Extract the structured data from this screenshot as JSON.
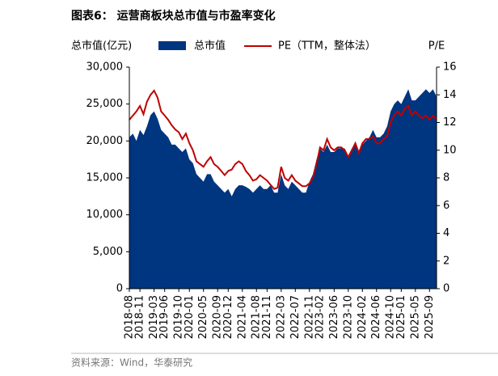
{
  "chart_data": {
    "type": "area_line",
    "title": "图表6：  运营商板块总市值与市盈率变化",
    "ylabel": "总市值(亿元)",
    "y2label": "P/E",
    "source": "资料来源：Wind，华泰研究",
    "x": [
      "2018-08",
      "2018-09",
      "2018-10",
      "2018-11",
      "2018-12",
      "2019-01",
      "2019-02",
      "2019-03",
      "2019-04",
      "2019-05",
      "2019-06",
      "2019-07",
      "2019-08",
      "2019-09",
      "2019-10",
      "2019-11",
      "2019-12",
      "2020-01",
      "2020-02",
      "2020-03",
      "2020-04",
      "2020-05",
      "2020-06",
      "2020-07",
      "2020-08",
      "2020-09",
      "2020-10",
      "2020-11",
      "2020-12",
      "2021-01",
      "2021-02",
      "2021-03",
      "2021-04",
      "2021-05",
      "2021-06",
      "2021-07",
      "2021-08",
      "2021-09",
      "2021-10",
      "2021-11",
      "2021-12",
      "2022-01",
      "2022-02",
      "2022-03",
      "2022-04",
      "2022-05",
      "2022-06",
      "2022-07",
      "2022-08",
      "2022-09",
      "2022-10",
      "2022-11",
      "2022-12",
      "2023-01",
      "2023-02",
      "2023-03",
      "2023-04",
      "2023-05",
      "2023-06",
      "2023-07",
      "2023-08",
      "2023-09",
      "2023-10",
      "2023-11",
      "2023-12",
      "2024-01",
      "2024-02",
      "2024-03",
      "2024-04",
      "2024-05",
      "2024-06",
      "2024-07",
      "2024-08",
      "2024-09",
      "2024-10",
      "2024-11",
      "2024-12",
      "2025-01",
      "2025-02",
      "2025-03",
      "2025-04",
      "2025-05",
      "2025-06",
      "2025-07",
      "2025-08",
      "2025-09",
      "2025-10",
      "2025-11"
    ],
    "series": [
      {
        "name": "总市值",
        "type": "area",
        "color": "#003580",
        "values": [
          20500,
          21000,
          20000,
          21500,
          20800,
          22000,
          23500,
          24000,
          23000,
          21500,
          21000,
          20500,
          19500,
          19500,
          19000,
          18500,
          19000,
          17500,
          17000,
          15500,
          15000,
          14500,
          15500,
          15500,
          14500,
          14000,
          13500,
          13000,
          13500,
          12500,
          13500,
          14000,
          14000,
          13800,
          13500,
          13000,
          13500,
          14000,
          13500,
          13500,
          14000,
          13000,
          13000,
          15500,
          14000,
          13500,
          14500,
          14000,
          13500,
          13000,
          13000,
          14500,
          15500,
          17500,
          19000,
          18500,
          19500,
          18500,
          18500,
          19000,
          19000,
          19000,
          18000,
          19000,
          19500,
          18500,
          19500,
          20000,
          20500,
          21500,
          20500,
          20500,
          21000,
          22000,
          24000,
          25000,
          25500,
          25000,
          26000,
          27000,
          25500,
          25500,
          26000,
          26500,
          27000,
          26500,
          27000,
          26000
        ]
      },
      {
        "name": "PE（TTM，整体法）",
        "type": "line",
        "axis": "y2",
        "color": "#c00000",
        "values": [
          12.2,
          12.5,
          12.8,
          13.2,
          12.6,
          13.5,
          14.0,
          14.3,
          13.8,
          12.8,
          12.5,
          12.2,
          11.8,
          11.5,
          11.3,
          10.8,
          11.2,
          10.5,
          10.0,
          9.2,
          9.0,
          8.8,
          9.2,
          9.5,
          9.0,
          8.8,
          8.5,
          8.2,
          8.5,
          8.6,
          9.0,
          9.2,
          9.0,
          8.5,
          8.2,
          7.8,
          7.9,
          8.2,
          8.0,
          7.8,
          7.5,
          7.2,
          7.3,
          8.8,
          8.0,
          7.8,
          8.2,
          7.8,
          7.6,
          7.4,
          7.4,
          7.6,
          8.0,
          9.0,
          10.2,
          10.0,
          10.8,
          10.2,
          10.0,
          10.2,
          10.2,
          10.0,
          9.5,
          10.0,
          10.5,
          9.8,
          10.5,
          10.8,
          10.8,
          11.0,
          10.5,
          10.5,
          10.8,
          11.0,
          12.0,
          12.5,
          12.8,
          12.5,
          13.0,
          13.2,
          12.5,
          12.8,
          12.5,
          12.3,
          12.5,
          12.2,
          12.5,
          12.2
        ]
      }
    ],
    "xticks": [
      "2018-08",
      "2018-11",
      "2019-03",
      "2019-06",
      "2019-10",
      "2020-01",
      "2020-05",
      "2020-09",
      "2020-12",
      "2021-04",
      "2021-08",
      "2021-11",
      "2022-03",
      "2022-07",
      "2022-11",
      "2023-02",
      "2023-06",
      "2023-10",
      "2024-02",
      "2024-06",
      "2024-10",
      "2025-01",
      "2025-05",
      "2025-09"
    ],
    "ylim": [
      0,
      30000
    ],
    "yticks": [
      0,
      {
        "value": 5000,
        "label": "5,000"
      },
      {
        "value": 10000,
        "label": "10,000"
      },
      {
        "value": 15000,
        "label": "15,000"
      },
      {
        "value": 20000,
        "label": "20,000"
      },
      {
        "value": 25000,
        "label": "25,000"
      },
      {
        "value": 30000,
        "label": "30,000"
      }
    ],
    "y2lim": [
      0,
      16
    ],
    "y2ticks": [
      0,
      2,
      4,
      6,
      8,
      10,
      12,
      14,
      16
    ]
  }
}
